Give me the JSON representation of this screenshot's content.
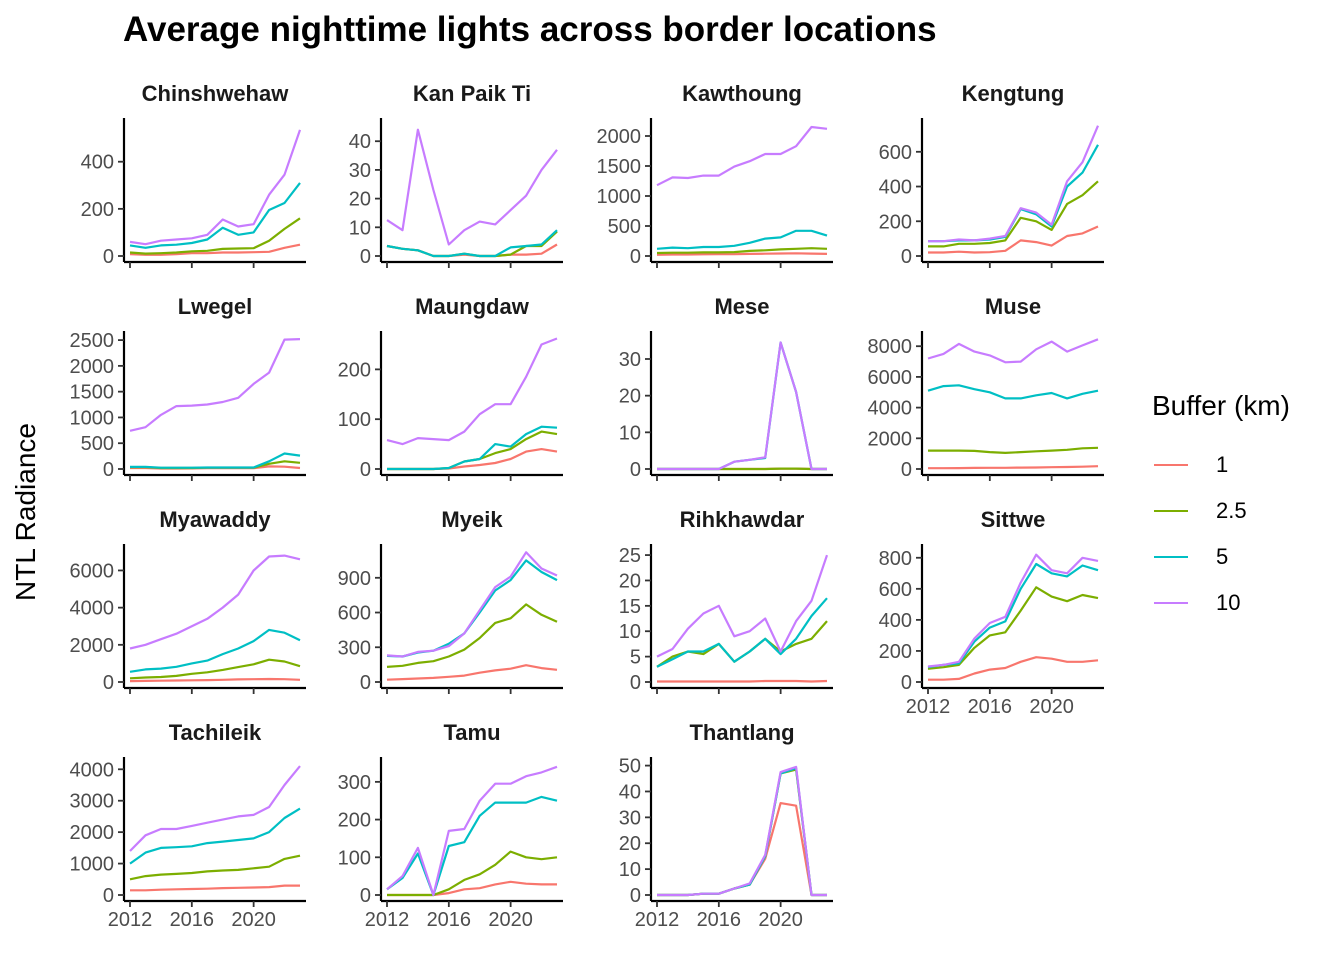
{
  "title": "Average nighttime lights across border locations",
  "ylabel": "NTL Radiance",
  "legend": {
    "title": "Buffer (km)",
    "entries": [
      {
        "label": "1",
        "color": "#F8766D"
      },
      {
        "label": "2.5",
        "color": "#7CAE00"
      },
      {
        "label": "5",
        "color": "#00BFC4"
      },
      {
        "label": "10",
        "color": "#C77CFF"
      }
    ]
  },
  "chart_data": {
    "type": "line",
    "x": [
      2012,
      2013,
      2014,
      2015,
      2016,
      2017,
      2018,
      2019,
      2020,
      2021,
      2022,
      2023
    ],
    "xticks": [
      "2012",
      "2016",
      "2020"
    ],
    "series_names": [
      "1",
      "2.5",
      "5",
      "10"
    ],
    "panels": [
      {
        "name": "Chinshwehaw",
        "ylim": [
          0,
          560
        ],
        "yticks": [
          0,
          200,
          400
        ],
        "series": [
          [
            8,
            5,
            5,
            8,
            12,
            12,
            15,
            15,
            16,
            18,
            35,
            48
          ],
          [
            15,
            10,
            12,
            15,
            20,
            22,
            30,
            32,
            33,
            65,
            115,
            160
          ],
          [
            45,
            35,
            45,
            48,
            55,
            70,
            120,
            90,
            100,
            195,
            225,
            310
          ],
          [
            60,
            50,
            65,
            70,
            75,
            90,
            155,
            125,
            135,
            260,
            345,
            535
          ]
        ]
      },
      {
        "name": "Kan Paik Ti",
        "ylim": [
          0,
          46
        ],
        "yticks": [
          0,
          10,
          20,
          30,
          40
        ],
        "series": [
          [
            3.5,
            2.5,
            2,
            0,
            0,
            0.5,
            0,
            0,
            0.5,
            0.5,
            0.8,
            4
          ],
          [
            3.5,
            2.5,
            2,
            0,
            0,
            0.8,
            0,
            0,
            0.5,
            3.5,
            3.5,
            8.5
          ],
          [
            3.5,
            2.5,
            2,
            0,
            0,
            0.8,
            0,
            0,
            3,
            3.5,
            4,
            9
          ],
          [
            12.5,
            9,
            44,
            23,
            4,
            9,
            12,
            11,
            16,
            21,
            30,
            37
          ]
        ]
      },
      {
        "name": "Kawthoung",
        "ylim": [
          0,
          2200
        ],
        "yticks": [
          0,
          500,
          1000,
          1500,
          2000
        ],
        "series": [
          [
            20,
            25,
            25,
            28,
            30,
            30,
            35,
            38,
            42,
            45,
            40,
            35
          ],
          [
            50,
            55,
            55,
            60,
            60,
            65,
            85,
            95,
            110,
            120,
            130,
            120
          ],
          [
            120,
            140,
            130,
            150,
            150,
            170,
            220,
            290,
            310,
            420,
            420,
            340
          ],
          [
            1180,
            1310,
            1300,
            1340,
            1340,
            1490,
            1580,
            1700,
            1700,
            1830,
            2150,
            2120
          ]
        ]
      },
      {
        "name": "Kengtung",
        "ylim": [
          0,
          760
        ],
        "yticks": [
          0,
          200,
          400,
          600
        ],
        "series": [
          [
            20,
            20,
            25,
            20,
            22,
            30,
            90,
            80,
            60,
            115,
            130,
            170
          ],
          [
            55,
            55,
            70,
            70,
            75,
            90,
            220,
            200,
            150,
            300,
            350,
            430
          ],
          [
            85,
            85,
            90,
            90,
            95,
            110,
            270,
            240,
            170,
            400,
            480,
            640
          ],
          [
            85,
            85,
            95,
            90,
            100,
            115,
            275,
            250,
            180,
            430,
            540,
            750
          ]
        ]
      },
      {
        "name": "Lwegel",
        "ylim": [
          0,
          2560
        ],
        "yticks": [
          0,
          500,
          1000,
          1500,
          2000,
          2500
        ],
        "series": [
          [
            20,
            20,
            10,
            10,
            12,
            15,
            15,
            15,
            15,
            50,
            45,
            20
          ],
          [
            35,
            35,
            20,
            20,
            20,
            25,
            25,
            25,
            25,
            100,
            150,
            120
          ],
          [
            40,
            40,
            25,
            25,
            25,
            30,
            30,
            30,
            30,
            150,
            300,
            260
          ],
          [
            740,
            810,
            1050,
            1220,
            1230,
            1250,
            1300,
            1380,
            1650,
            1870,
            2510,
            2520
          ]
        ]
      },
      {
        "name": "Maungdaw",
        "ylim": [
          0,
          265
        ],
        "yticks": [
          0,
          100,
          200
        ],
        "series": [
          [
            0,
            0,
            0,
            0,
            1,
            5,
            8,
            12,
            20,
            35,
            40,
            35
          ],
          [
            0,
            0,
            0,
            0,
            2,
            15,
            20,
            32,
            40,
            60,
            75,
            70
          ],
          [
            0,
            0,
            0,
            0,
            2,
            15,
            20,
            50,
            45,
            70,
            85,
            83
          ],
          [
            58,
            50,
            62,
            60,
            58,
            75,
            110,
            130,
            130,
            185,
            250,
            262
          ]
        ]
      },
      {
        "name": "Mese",
        "ylim": [
          0,
          36
        ],
        "yticks": [
          0,
          10,
          20,
          30
        ],
        "series": [
          [
            0,
            0,
            0,
            0,
            0,
            0,
            0,
            0,
            0.1,
            0.1,
            0,
            0
          ],
          [
            0,
            0,
            0,
            0,
            0,
            0,
            0,
            0,
            0.1,
            0.1,
            0,
            0
          ],
          [
            0,
            0,
            0,
            0,
            0,
            2,
            2.5,
            3,
            34.5,
            21,
            0,
            0
          ],
          [
            0,
            0,
            0,
            0,
            0,
            2,
            2.5,
            3.2,
            34.5,
            21,
            0,
            0
          ]
        ]
      },
      {
        "name": "Muse",
        "ylim": [
          0,
          8600
        ],
        "yticks": [
          0,
          2000,
          4000,
          6000,
          8000
        ],
        "series": [
          [
            50,
            50,
            60,
            70,
            80,
            80,
            90,
            100,
            120,
            130,
            150,
            180
          ],
          [
            1200,
            1200,
            1200,
            1180,
            1100,
            1050,
            1100,
            1150,
            1200,
            1250,
            1350,
            1380
          ],
          [
            5100,
            5400,
            5450,
            5200,
            5000,
            4600,
            4600,
            4800,
            4950,
            4600,
            4900,
            5100
          ],
          [
            7200,
            7500,
            8150,
            7650,
            7400,
            6950,
            7000,
            7800,
            8300,
            7650,
            8050,
            8450
          ]
        ]
      },
      {
        "name": "Myawaddy",
        "ylim": [
          0,
          7100
        ],
        "yticks": [
          0,
          2000,
          4000,
          6000
        ],
        "series": [
          [
            50,
            60,
            70,
            80,
            90,
            100,
            120,
            140,
            150,
            160,
            150,
            120
          ],
          [
            200,
            240,
            270,
            330,
            440,
            520,
            650,
            800,
            950,
            1200,
            1100,
            850
          ],
          [
            550,
            680,
            720,
            820,
            1000,
            1150,
            1500,
            1800,
            2200,
            2800,
            2650,
            2250
          ],
          [
            1800,
            2000,
            2300,
            2600,
            3000,
            3400,
            4000,
            4700,
            6000,
            6750,
            6800,
            6600
          ]
        ]
      },
      {
        "name": "Myeik",
        "ylim": [
          0,
          1140
        ],
        "yticks": [
          0,
          300,
          600,
          900
        ],
        "series": [
          [
            20,
            25,
            30,
            35,
            45,
            55,
            80,
            100,
            115,
            145,
            120,
            105
          ],
          [
            130,
            140,
            165,
            180,
            220,
            280,
            380,
            510,
            550,
            670,
            580,
            520
          ],
          [
            225,
            220,
            255,
            270,
            330,
            420,
            600,
            790,
            880,
            1050,
            950,
            880
          ],
          [
            230,
            220,
            260,
            270,
            310,
            420,
            620,
            820,
            910,
            1120,
            980,
            920
          ]
        ]
      },
      {
        "name": "Rihkhawdar",
        "ylim": [
          0,
          26
        ],
        "yticks": [
          0,
          5,
          10,
          15,
          20,
          25
        ],
        "series": [
          [
            0.1,
            0.1,
            0.1,
            0.1,
            0.1,
            0.1,
            0.1,
            0.2,
            0.2,
            0.2,
            0.1,
            0.2
          ],
          [
            3,
            5,
            6,
            5.5,
            7.5,
            4,
            6,
            8.5,
            6,
            7.5,
            8.5,
            12
          ],
          [
            3,
            4.5,
            6,
            6,
            7.5,
            4,
            6,
            8.5,
            5.5,
            8.5,
            13,
            16.5
          ],
          [
            5,
            6.5,
            10.5,
            13.5,
            15,
            9,
            10,
            12.5,
            6,
            12,
            16,
            25
          ]
        ]
      },
      {
        "name": "Sittwe",
        "ylim": [
          0,
          850
        ],
        "yticks": [
          0,
          200,
          400,
          600,
          800
        ],
        "series": [
          [
            15,
            15,
            20,
            55,
            80,
            90,
            130,
            160,
            150,
            130,
            130,
            140
          ],
          [
            85,
            95,
            110,
            220,
            300,
            320,
            460,
            610,
            550,
            520,
            560,
            540
          ],
          [
            95,
            110,
            120,
            260,
            350,
            390,
            600,
            760,
            700,
            680,
            750,
            720
          ],
          [
            100,
            110,
            130,
            280,
            380,
            420,
            640,
            820,
            720,
            700,
            800,
            780
          ]
        ]
      },
      {
        "name": "Tachileik",
        "ylim": [
          0,
          4200
        ],
        "yticks": [
          0,
          1000,
          2000,
          3000,
          4000
        ],
        "series": [
          [
            150,
            150,
            170,
            180,
            190,
            200,
            220,
            230,
            240,
            250,
            300,
            300
          ],
          [
            500,
            600,
            650,
            670,
            700,
            750,
            780,
            800,
            850,
            900,
            1150,
            1250
          ],
          [
            1000,
            1350,
            1500,
            1520,
            1550,
            1650,
            1700,
            1750,
            1800,
            2000,
            2450,
            2750
          ],
          [
            1400,
            1900,
            2100,
            2100,
            2200,
            2300,
            2400,
            2500,
            2550,
            2800,
            3500,
            4100
          ]
        ]
      },
      {
        "name": "Tamu",
        "ylim": [
          0,
          350
        ],
        "yticks": [
          0,
          100,
          200,
          300
        ],
        "series": [
          [
            0,
            0,
            0,
            0,
            5,
            15,
            18,
            28,
            35,
            30,
            28,
            28
          ],
          [
            0,
            0,
            0,
            0,
            15,
            40,
            55,
            80,
            115,
            100,
            95,
            100
          ],
          [
            15,
            45,
            110,
            0,
            130,
            140,
            210,
            245,
            245,
            245,
            260,
            250
          ],
          [
            15,
            50,
            125,
            0,
            170,
            175,
            250,
            295,
            295,
            315,
            325,
            340
          ]
        ]
      },
      {
        "name": "Thantlang",
        "ylim": [
          0,
          51
        ],
        "yticks": [
          0,
          10,
          20,
          30,
          40,
          50
        ],
        "series": [
          [
            0,
            0,
            0,
            0.5,
            0.5,
            2.5,
            4,
            14,
            35.5,
            34.5,
            0,
            0
          ],
          [
            0,
            0,
            0,
            0.5,
            0.5,
            2.5,
            4,
            15,
            47,
            48.5,
            0,
            0
          ],
          [
            0,
            0,
            0,
            0.5,
            0.5,
            2.5,
            4,
            15,
            47,
            49,
            0,
            0
          ],
          [
            0,
            0,
            0,
            0.5,
            0.5,
            2.5,
            4.5,
            15.5,
            47.5,
            49.5,
            0,
            0
          ]
        ]
      }
    ]
  }
}
